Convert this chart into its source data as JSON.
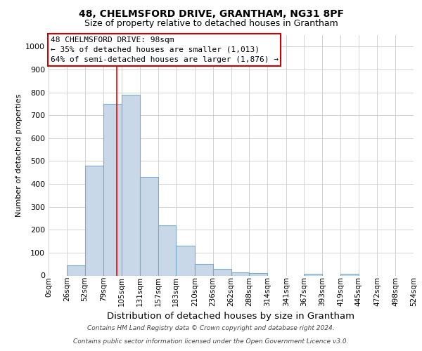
{
  "title1": "48, CHELMSFORD DRIVE, GRANTHAM, NG31 8PF",
  "title2": "Size of property relative to detached houses in Grantham",
  "xlabel": "Distribution of detached houses by size in Grantham",
  "ylabel": "Number of detached properties",
  "footnote1": "Contains HM Land Registry data © Crown copyright and database right 2024.",
  "footnote2": "Contains public sector information licensed under the Open Government Licence v3.0.",
  "bin_edges": [
    0,
    26,
    52,
    79,
    105,
    131,
    157,
    183,
    210,
    236,
    262,
    288,
    314,
    341,
    367,
    393,
    419,
    445,
    472,
    498,
    524
  ],
  "bar_heights": [
    0,
    45,
    480,
    750,
    790,
    430,
    218,
    130,
    50,
    28,
    15,
    10,
    0,
    0,
    8,
    0,
    8,
    0,
    0,
    0
  ],
  "bar_color": "#c8d8e8",
  "bar_edge_color": "#7aaac8",
  "red_line_x": 98,
  "annotation_line1": "48 CHELMSFORD DRIVE: 98sqm",
  "annotation_line2": "← 35% of detached houses are smaller (1,013)",
  "annotation_line3": "64% of semi-detached houses are larger (1,876) →",
  "annotation_box_facecolor": "#ffffff",
  "annotation_box_edgecolor": "#cc0000",
  "ylim": [
    0,
    1050
  ],
  "yticks": [
    0,
    100,
    200,
    300,
    400,
    500,
    600,
    700,
    800,
    900,
    1000
  ],
  "grid_color": "#cccccc",
  "title1_fontsize": 10,
  "title2_fontsize": 9,
  "ylabel_fontsize": 8,
  "xlabel_fontsize": 9.5,
  "tick_fontsize": 8,
  "xtick_fontsize": 7.5,
  "footnote_fontsize": 6.5
}
